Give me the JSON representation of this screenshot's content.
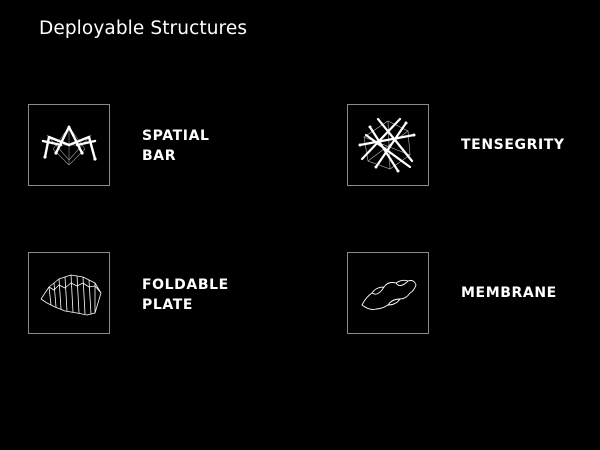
{
  "title": "Deployable Structures",
  "colors": {
    "background": "#000000",
    "text": "#ffffff",
    "frame": "#8a8a8a"
  },
  "items": [
    {
      "icon": "spatial-bar-icon",
      "lines": [
        "SPATIAL",
        "BAR"
      ]
    },
    {
      "icon": "tensegrity-icon",
      "lines": [
        "TENSEGRITY"
      ]
    },
    {
      "icon": "foldable-plate-icon",
      "lines": [
        "FOLDABLE",
        "PLATE"
      ]
    },
    {
      "icon": "membrane-icon",
      "lines": [
        "MEMBRANE"
      ]
    }
  ]
}
